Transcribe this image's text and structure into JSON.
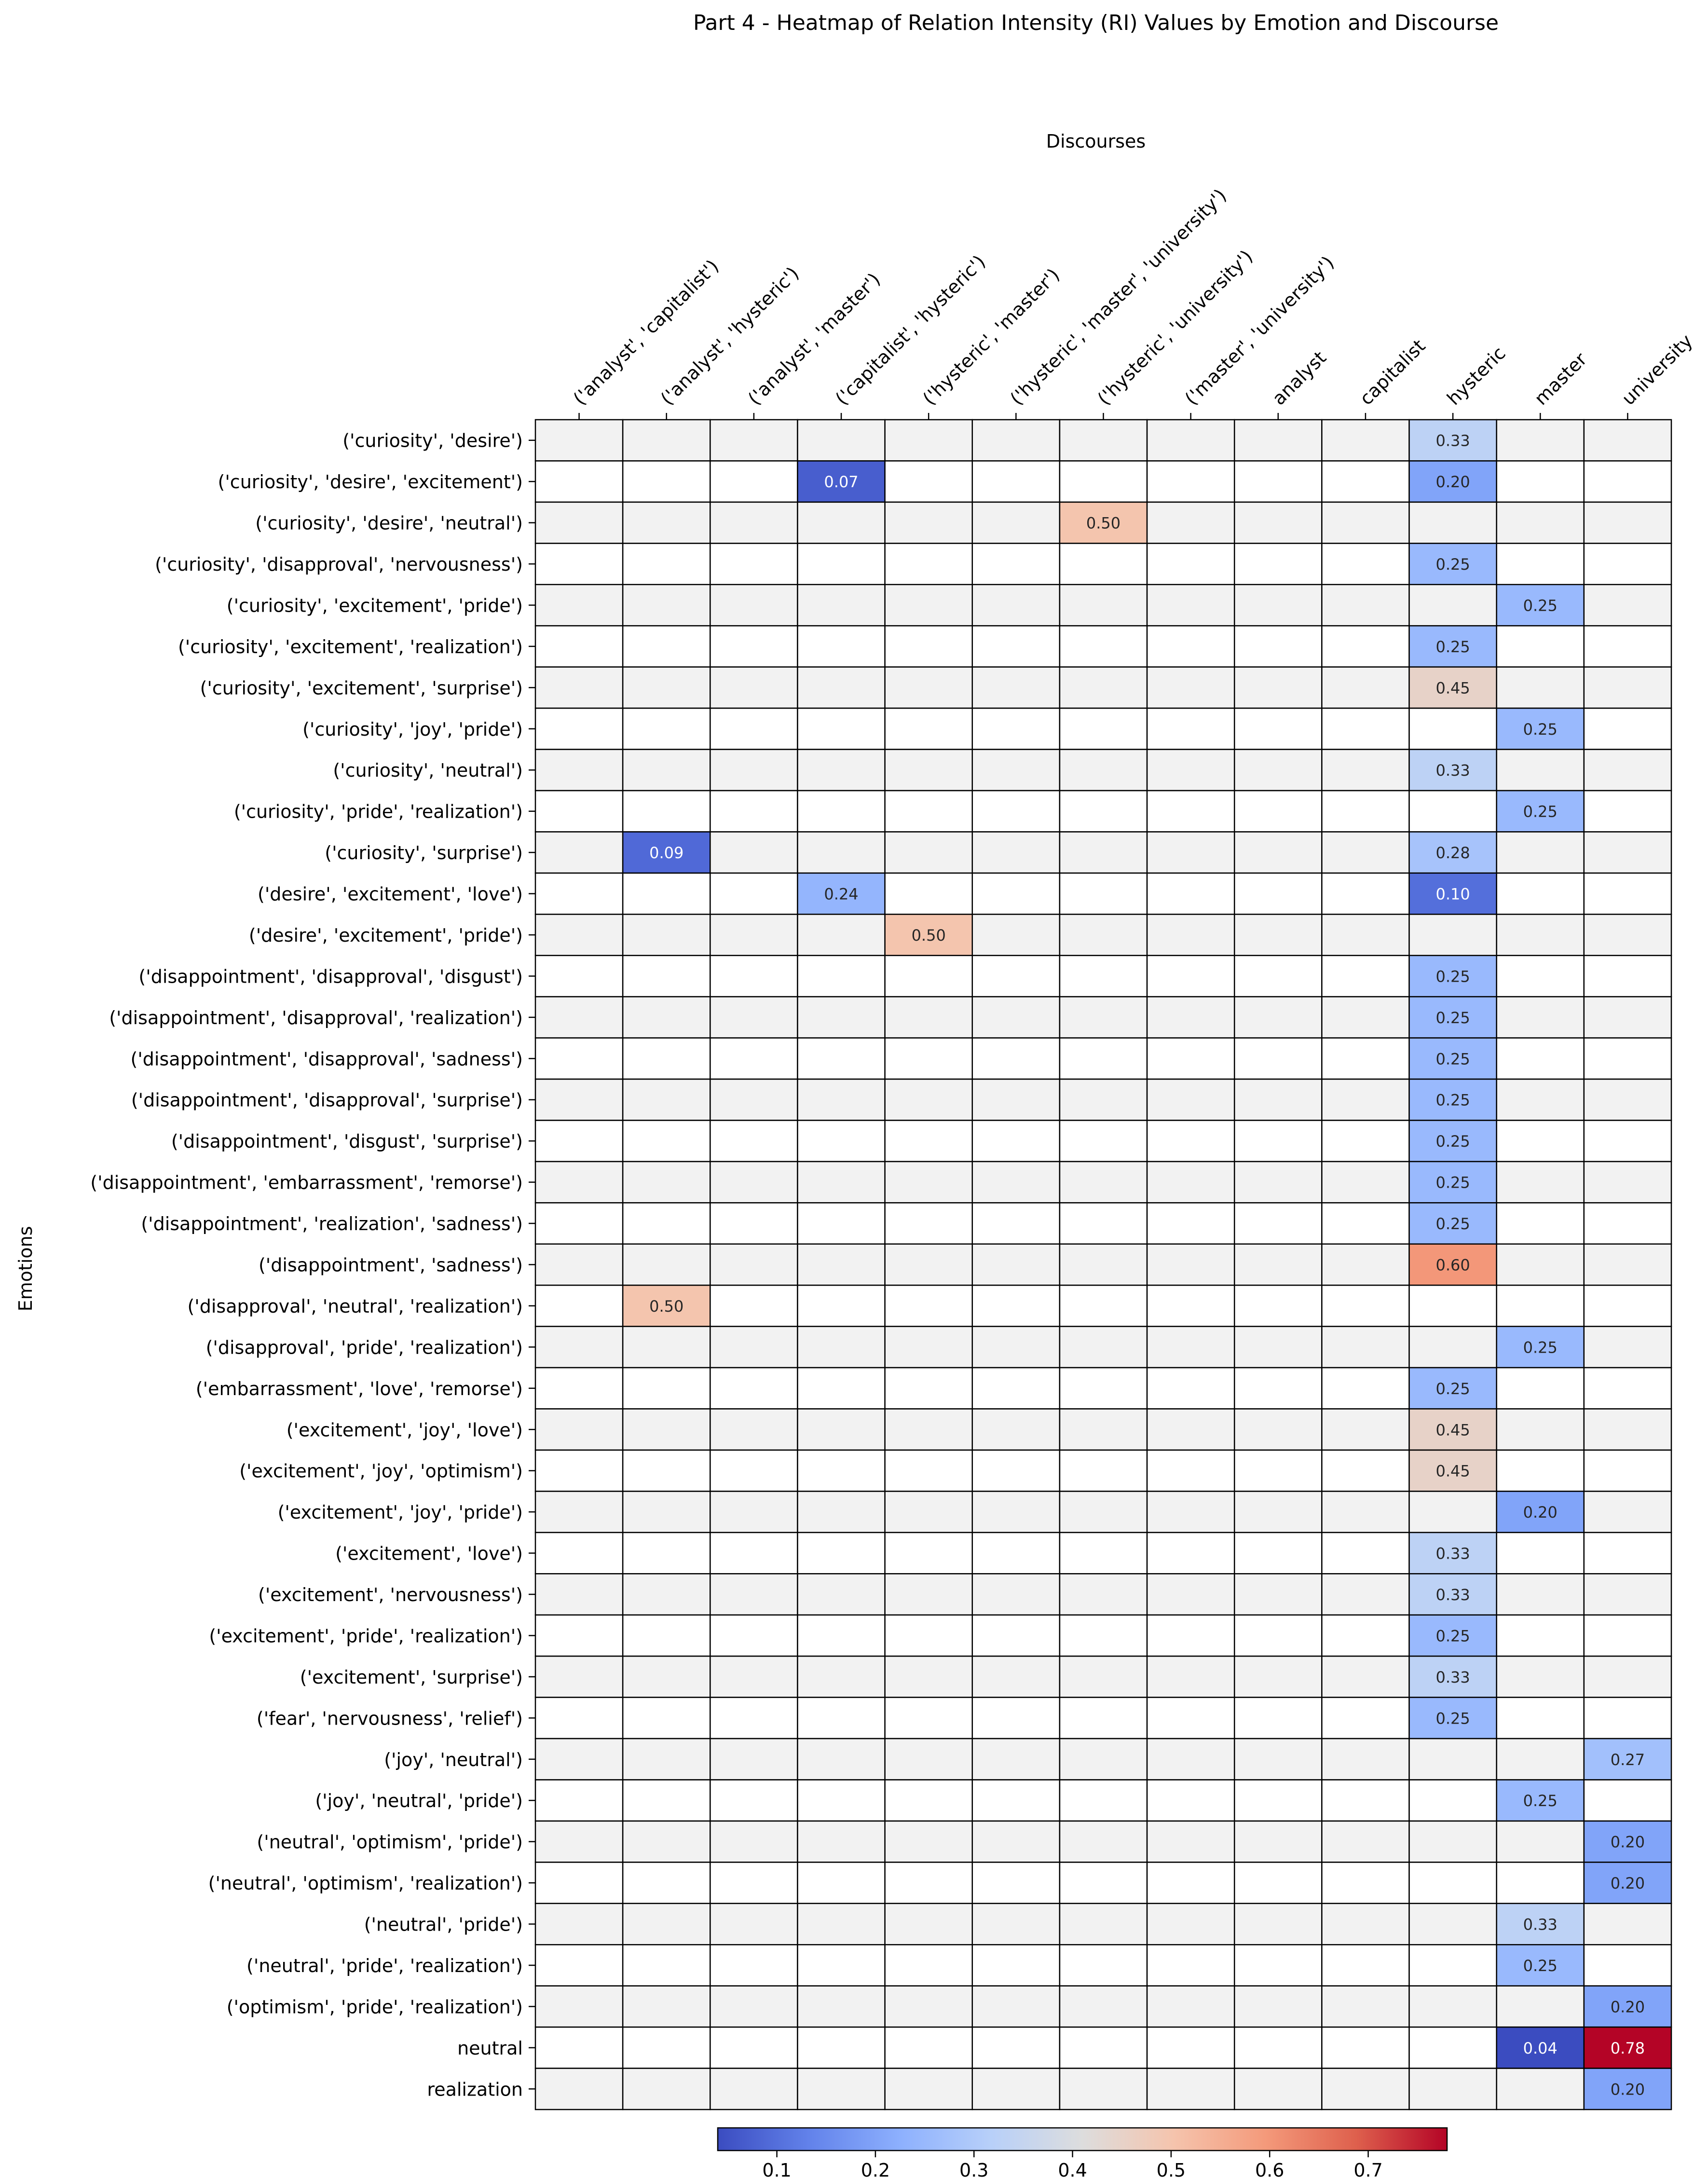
{
  "chart_data": {
    "type": "heatmap",
    "title": "Part 4 - Heatmap of Relation Intensity (RI) Values by Emotion and Discourse",
    "xlabel": "Discourses",
    "ylabel": "Emotions",
    "colormap": "coolwarm",
    "vmin": 0.04,
    "vmax": 0.78,
    "colorbar_ticks": [
      "0.1",
      "0.2",
      "0.3",
      "0.4",
      "0.5",
      "0.6",
      "0.7"
    ],
    "colorbar_tick_values": [
      0.1,
      0.2,
      0.3,
      0.4,
      0.5,
      0.6,
      0.7
    ],
    "columns": [
      "('analyst', 'capitalist')",
      "('analyst', 'hysteric')",
      "('analyst', 'master')",
      "('capitalist', 'hysteric')",
      "('hysteric', 'master')",
      "('hysteric', 'master', 'university')",
      "('hysteric', 'university')",
      "('master', 'university')",
      "analyst",
      "capitalist",
      "hysteric",
      "master",
      "university"
    ],
    "rows": [
      "('curiosity', 'desire')",
      "('curiosity', 'desire', 'excitement')",
      "('curiosity', 'desire', 'neutral')",
      "('curiosity', 'disapproval', 'nervousness')",
      "('curiosity', 'excitement', 'pride')",
      "('curiosity', 'excitement', 'realization')",
      "('curiosity', 'excitement', 'surprise')",
      "('curiosity', 'joy', 'pride')",
      "('curiosity', 'neutral')",
      "('curiosity', 'pride', 'realization')",
      "('curiosity', 'surprise')",
      "('desire', 'excitement', 'love')",
      "('desire', 'excitement', 'pride')",
      "('disappointment', 'disapproval', 'disgust')",
      "('disappointment', 'disapproval', 'realization')",
      "('disappointment', 'disapproval', 'sadness')",
      "('disappointment', 'disapproval', 'surprise')",
      "('disappointment', 'disgust', 'surprise')",
      "('disappointment', 'embarrassment', 'remorse')",
      "('disappointment', 'realization', 'sadness')",
      "('disappointment', 'sadness')",
      "('disapproval', 'neutral', 'realization')",
      "('disapproval', 'pride', 'realization')",
      "('embarrassment', 'love', 'remorse')",
      "('excitement', 'joy', 'love')",
      "('excitement', 'joy', 'optimism')",
      "('excitement', 'joy', 'pride')",
      "('excitement', 'love')",
      "('excitement', 'nervousness')",
      "('excitement', 'pride', 'realization')",
      "('excitement', 'surprise')",
      "('fear', 'nervousness', 'relief')",
      "('joy', 'neutral')",
      "('joy', 'neutral', 'pride')",
      "('neutral', 'optimism', 'pride')",
      "('neutral', 'optimism', 'realization')",
      "('neutral', 'pride')",
      "('neutral', 'pride', 'realization')",
      "('optimism', 'pride', 'realization')",
      "neutral",
      "realization"
    ],
    "values": [
      [
        null,
        null,
        null,
        null,
        null,
        null,
        null,
        null,
        null,
        null,
        0.33,
        null,
        null
      ],
      [
        null,
        null,
        null,
        0.07,
        null,
        null,
        null,
        null,
        null,
        null,
        0.2,
        null,
        null
      ],
      [
        null,
        null,
        null,
        null,
        null,
        null,
        0.5,
        null,
        null,
        null,
        null,
        null,
        null
      ],
      [
        null,
        null,
        null,
        null,
        null,
        null,
        null,
        null,
        null,
        null,
        0.25,
        null,
        null
      ],
      [
        null,
        null,
        null,
        null,
        null,
        null,
        null,
        null,
        null,
        null,
        null,
        0.25,
        null
      ],
      [
        null,
        null,
        null,
        null,
        null,
        null,
        null,
        null,
        null,
        null,
        0.25,
        null,
        null
      ],
      [
        null,
        null,
        null,
        null,
        null,
        null,
        null,
        null,
        null,
        null,
        0.45,
        null,
        null
      ],
      [
        null,
        null,
        null,
        null,
        null,
        null,
        null,
        null,
        null,
        null,
        null,
        0.25,
        null
      ],
      [
        null,
        null,
        null,
        null,
        null,
        null,
        null,
        null,
        null,
        null,
        0.33,
        null,
        null
      ],
      [
        null,
        null,
        null,
        null,
        null,
        null,
        null,
        null,
        null,
        null,
        null,
        0.25,
        null
      ],
      [
        null,
        0.09,
        null,
        null,
        null,
        null,
        null,
        null,
        null,
        null,
        0.28,
        null,
        null
      ],
      [
        null,
        null,
        null,
        0.24,
        null,
        null,
        null,
        null,
        null,
        null,
        0.1,
        null,
        null
      ],
      [
        null,
        null,
        null,
        null,
        0.5,
        null,
        null,
        null,
        null,
        null,
        null,
        null,
        null
      ],
      [
        null,
        null,
        null,
        null,
        null,
        null,
        null,
        null,
        null,
        null,
        0.25,
        null,
        null
      ],
      [
        null,
        null,
        null,
        null,
        null,
        null,
        null,
        null,
        null,
        null,
        0.25,
        null,
        null
      ],
      [
        null,
        null,
        null,
        null,
        null,
        null,
        null,
        null,
        null,
        null,
        0.25,
        null,
        null
      ],
      [
        null,
        null,
        null,
        null,
        null,
        null,
        null,
        null,
        null,
        null,
        0.25,
        null,
        null
      ],
      [
        null,
        null,
        null,
        null,
        null,
        null,
        null,
        null,
        null,
        null,
        0.25,
        null,
        null
      ],
      [
        null,
        null,
        null,
        null,
        null,
        null,
        null,
        null,
        null,
        null,
        0.25,
        null,
        null
      ],
      [
        null,
        null,
        null,
        null,
        null,
        null,
        null,
        null,
        null,
        null,
        0.25,
        null,
        null
      ],
      [
        null,
        null,
        null,
        null,
        null,
        null,
        null,
        null,
        null,
        null,
        0.6,
        null,
        null
      ],
      [
        null,
        0.5,
        null,
        null,
        null,
        null,
        null,
        null,
        null,
        null,
        null,
        null,
        null
      ],
      [
        null,
        null,
        null,
        null,
        null,
        null,
        null,
        null,
        null,
        null,
        null,
        0.25,
        null
      ],
      [
        null,
        null,
        null,
        null,
        null,
        null,
        null,
        null,
        null,
        null,
        0.25,
        null,
        null
      ],
      [
        null,
        null,
        null,
        null,
        null,
        null,
        null,
        null,
        null,
        null,
        0.45,
        null,
        null
      ],
      [
        null,
        null,
        null,
        null,
        null,
        null,
        null,
        null,
        null,
        null,
        0.45,
        null,
        null
      ],
      [
        null,
        null,
        null,
        null,
        null,
        null,
        null,
        null,
        null,
        null,
        null,
        0.2,
        null
      ],
      [
        null,
        null,
        null,
        null,
        null,
        null,
        null,
        null,
        null,
        null,
        0.33,
        null,
        null
      ],
      [
        null,
        null,
        null,
        null,
        null,
        null,
        null,
        null,
        null,
        null,
        0.33,
        null,
        null
      ],
      [
        null,
        null,
        null,
        null,
        null,
        null,
        null,
        null,
        null,
        null,
        0.25,
        null,
        null
      ],
      [
        null,
        null,
        null,
        null,
        null,
        null,
        null,
        null,
        null,
        null,
        0.33,
        null,
        null
      ],
      [
        null,
        null,
        null,
        null,
        null,
        null,
        null,
        null,
        null,
        null,
        0.25,
        null,
        null
      ],
      [
        null,
        null,
        null,
        null,
        null,
        null,
        null,
        null,
        null,
        null,
        null,
        null,
        0.27
      ],
      [
        null,
        null,
        null,
        null,
        null,
        null,
        null,
        null,
        null,
        null,
        null,
        0.25,
        null
      ],
      [
        null,
        null,
        null,
        null,
        null,
        null,
        null,
        null,
        null,
        null,
        null,
        null,
        0.2
      ],
      [
        null,
        null,
        null,
        null,
        null,
        null,
        null,
        null,
        null,
        null,
        null,
        null,
        0.2
      ],
      [
        null,
        null,
        null,
        null,
        null,
        null,
        null,
        null,
        null,
        null,
        null,
        0.33,
        null
      ],
      [
        null,
        null,
        null,
        null,
        null,
        null,
        null,
        null,
        null,
        null,
        null,
        0.25,
        null
      ],
      [
        null,
        null,
        null,
        null,
        null,
        null,
        null,
        null,
        null,
        null,
        null,
        null,
        0.2
      ],
      [
        null,
        null,
        null,
        null,
        null,
        null,
        null,
        null,
        null,
        null,
        null,
        0.04,
        0.78
      ],
      [
        null,
        null,
        null,
        null,
        null,
        null,
        null,
        null,
        null,
        null,
        null,
        null,
        0.2
      ]
    ],
    "empty_cell_color_even_row": "#f2f2f2",
    "empty_cell_color_odd_row": "#ffffff",
    "legend": "colorbar-bottom"
  }
}
